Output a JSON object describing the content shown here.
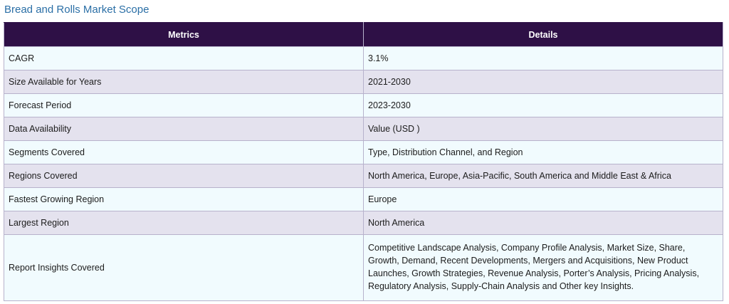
{
  "title": "Bread and Rolls Market Scope",
  "table": {
    "headers": [
      "Metrics",
      "Details"
    ],
    "rows": [
      {
        "metric": "CAGR",
        "detail": "3.1%"
      },
      {
        "metric": "Size Available for Years",
        "detail": "2021-2030"
      },
      {
        "metric": "Forecast Period",
        "detail": "2023-2030"
      },
      {
        "metric": "Data Availability",
        "detail": "Value (USD )"
      },
      {
        "metric": "Segments Covered",
        "detail": "Type, Distribution Channel, and Region"
      },
      {
        "metric": "Regions Covered",
        "detail": "North America, Europe, Asia-Pacific, South America and Middle East & Africa"
      },
      {
        "metric": "Fastest Growing Region",
        "detail": "Europe"
      },
      {
        "metric": "Largest Region",
        "detail": "North America"
      },
      {
        "metric": "Report Insights Covered",
        "detail": "Competitive Landscape Analysis, Company Profile Analysis, Market Size, Share, Growth, Demand, Recent Developments, Mergers and Acquisitions, New Product Launches, Growth Strategies, Revenue Analysis, Porter’s Analysis, Pricing Analysis, Regulatory Analysis, Supply-Chain Analysis and Other key Insights."
      }
    ]
  },
  "colors": {
    "title": "#2b6fa6",
    "header_bg": "#2e1046",
    "row_light": "#f1fbfe",
    "row_dark": "#e4e2ee",
    "border": "#b7b2cc"
  }
}
